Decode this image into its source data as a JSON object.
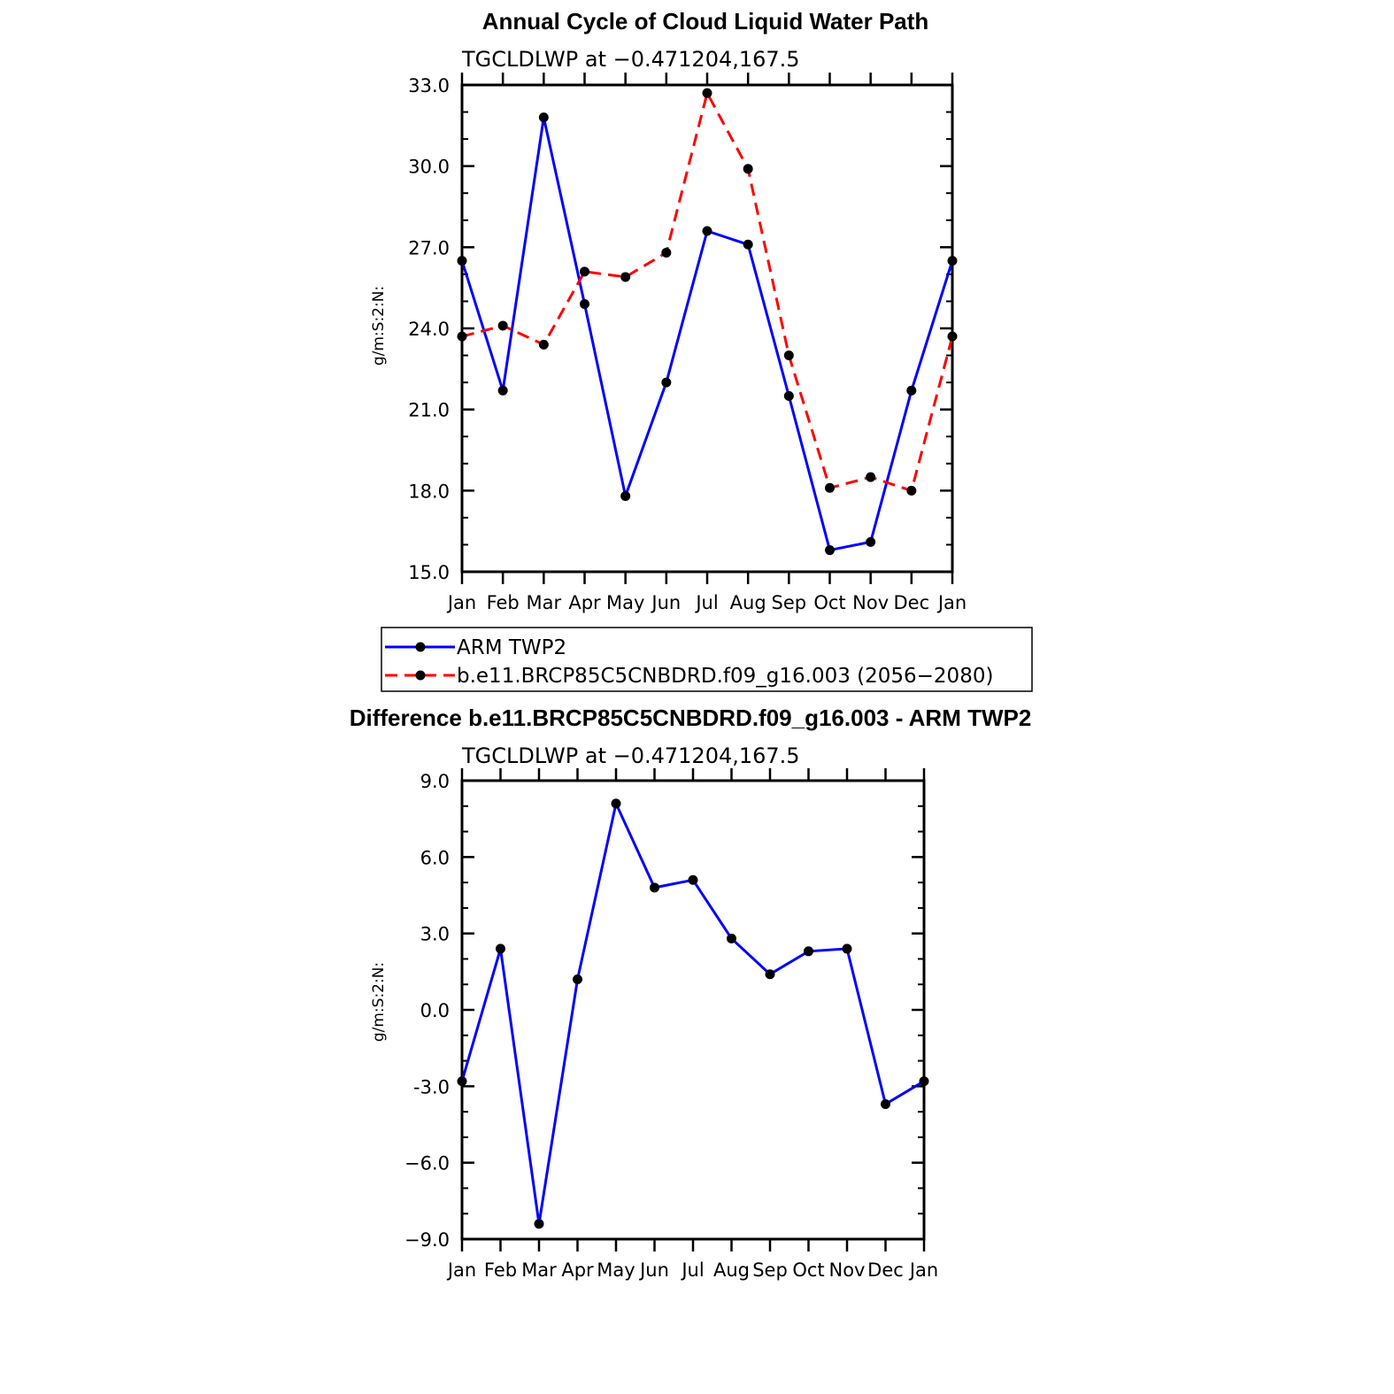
{
  "chart_data": [
    {
      "type": "line",
      "title": "Annual Cycle of Cloud Liquid Water Path",
      "subtitle": "TGCLDLWP at −0.471204,167.5",
      "ylabel": "g/m:S:2:N:",
      "xlabel": "",
      "categories": [
        "Jan",
        "Feb",
        "Mar",
        "Apr",
        "May",
        "Jun",
        "Jul",
        "Aug",
        "Sep",
        "Oct",
        "Nov",
        "Dec",
        "Jan"
      ],
      "ylim": [
        15.0,
        33.0
      ],
      "yticks": [
        "15.0",
        "18.0",
        "21.0",
        "24.0",
        "27.0",
        "30.0",
        "33.0"
      ],
      "grid": false,
      "legend_placement": "below",
      "series": [
        {
          "name": "ARM TWP2",
          "color": "#0000ff",
          "style": "solid",
          "values": [
            26.5,
            21.7,
            31.8,
            24.9,
            17.8,
            22.0,
            27.6,
            27.1,
            21.5,
            15.8,
            16.1,
            21.7,
            26.5
          ]
        },
        {
          "name": "b.e11.BRCP85C5CNBDRD.f09_g16.003 (2056−2080)",
          "color": "#ff0000",
          "style": "dashed",
          "values": [
            23.7,
            24.1,
            23.4,
            26.1,
            25.9,
            26.8,
            32.7,
            29.9,
            23.0,
            18.1,
            18.5,
            18.0,
            23.7
          ]
        }
      ]
    },
    {
      "type": "line",
      "title": "Difference b.e11.BRCP85C5CNBDRD.f09_g16.003 - ARM TWP2",
      "subtitle": "TGCLDLWP at −0.471204,167.5",
      "ylabel": "g/m:S:2:N:",
      "xlabel": "",
      "categories": [
        "Jan",
        "Feb",
        "Mar",
        "Apr",
        "May",
        "Jun",
        "Jul",
        "Aug",
        "Sep",
        "Oct",
        "Nov",
        "Dec",
        "Jan"
      ],
      "ylim": [
        -9.0,
        9.0
      ],
      "yticks": [
        "−9.0",
        "−6.0",
        "-3.0",
        "0.0",
        "3.0",
        "6.0",
        "9.0"
      ],
      "grid": false,
      "series": [
        {
          "color": "#0000ff",
          "style": "solid",
          "values": [
            -2.8,
            2.4,
            -8.4,
            1.2,
            8.1,
            4.8,
            5.1,
            2.8,
            1.4,
            2.3,
            2.4,
            -3.7,
            -2.8
          ]
        }
      ]
    }
  ]
}
